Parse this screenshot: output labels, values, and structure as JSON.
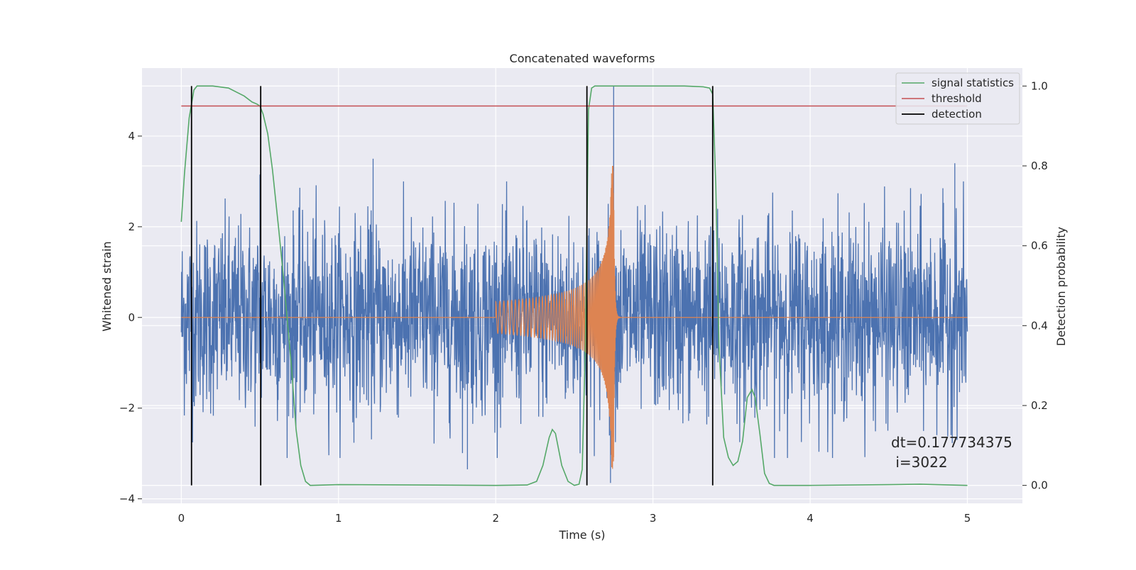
{
  "chart_data": {
    "type": "line",
    "title": "Concatenated waveforms",
    "xlabel": "Time (s)",
    "ylabel": "Whitened strain",
    "y2label": "Detection probability",
    "xlim": [
      -0.25,
      5.35
    ],
    "ylim": [
      -4.1,
      5.5
    ],
    "y2lim": [
      -0.045,
      1.045
    ],
    "xticks": [
      0,
      1,
      2,
      3,
      4,
      5
    ],
    "yticks": [
      -4,
      -2,
      0,
      2,
      4
    ],
    "y2ticks": [
      0.0,
      0.2,
      0.4,
      0.6,
      0.8,
      1.0
    ],
    "xtick_labels": [
      "0",
      "1",
      "2",
      "3",
      "4",
      "5"
    ],
    "ytick_labels": [
      "−4",
      "−2",
      "0",
      "2",
      "4"
    ],
    "y2tick_labels": [
      "0.0",
      "0.2",
      "0.4",
      "0.6",
      "0.8",
      "1.0"
    ],
    "grid": true,
    "legend_position": "top-right",
    "colors": {
      "strain": "#4c72b0",
      "injection": "#dd8452",
      "signal_statistics": "#55a868",
      "threshold": "#c44e52",
      "detection": "#000000",
      "axes_bg": "#eaeaf2",
      "grid": "#ffffff"
    },
    "series": [
      {
        "name": "signal statistics",
        "axis": "right",
        "x": [
          0.0,
          0.02,
          0.05,
          0.08,
          0.1,
          0.15,
          0.2,
          0.3,
          0.35,
          0.4,
          0.45,
          0.48,
          0.5,
          0.52,
          0.55,
          0.58,
          0.62,
          0.65,
          0.7,
          0.73,
          0.76,
          0.79,
          0.82,
          1.0,
          1.5,
          2.0,
          2.2,
          2.26,
          2.3,
          2.34,
          2.36,
          2.38,
          2.42,
          2.46,
          2.5,
          2.53,
          2.55,
          2.57,
          2.59,
          2.61,
          2.63,
          2.65,
          2.7,
          2.8,
          3.0,
          3.2,
          3.32,
          3.36,
          3.38,
          3.4,
          3.42,
          3.45,
          3.48,
          3.51,
          3.54,
          3.57,
          3.6,
          3.63,
          3.65,
          3.68,
          3.71,
          3.74,
          3.77,
          3.8,
          4.0,
          4.5,
          4.7,
          5.0
        ],
        "values": [
          0.66,
          0.78,
          0.92,
          0.99,
          1.0,
          1.0,
          1.0,
          0.995,
          0.985,
          0.975,
          0.96,
          0.955,
          0.95,
          0.93,
          0.88,
          0.79,
          0.64,
          0.52,
          0.3,
          0.14,
          0.05,
          0.01,
          0.0,
          0.002,
          0.001,
          0.0,
          0.001,
          0.01,
          0.05,
          0.12,
          0.14,
          0.13,
          0.05,
          0.01,
          0.0,
          0.003,
          0.04,
          0.35,
          0.94,
          0.995,
          1.0,
          1.0,
          1.0,
          1.0,
          1.0,
          1.0,
          0.998,
          0.995,
          0.98,
          0.75,
          0.35,
          0.12,
          0.07,
          0.05,
          0.06,
          0.11,
          0.22,
          0.24,
          0.22,
          0.13,
          0.03,
          0.005,
          0.0,
          0.0,
          0.0,
          0.002,
          0.003,
          0.0
        ]
      },
      {
        "name": "threshold",
        "axis": "right",
        "x": [
          0,
          5
        ],
        "values": [
          0.95,
          0.95
        ]
      },
      {
        "name": "detection",
        "axis": "right",
        "x": [
          0.065,
          0.505,
          2.58,
          3.38
        ],
        "values": [
          [
            0.0,
            1.0
          ],
          [
            0.0,
            1.0
          ],
          [
            0.0,
            1.0
          ],
          [
            0.0,
            1.0
          ]
        ]
      },
      {
        "name": "whitened strain",
        "axis": "left",
        "x_range": [
          0,
          5
        ],
        "description": "noise",
        "amplitude_std": 1.05,
        "spikes": [
          {
            "x": 2.75,
            "y": 5.1
          },
          {
            "x": 2.73,
            "y": -3.65
          },
          {
            "x": 1.22,
            "y": 3.5
          },
          {
            "x": 4.92,
            "y": 3.4
          },
          {
            "x": 0.5,
            "y": 3.15
          },
          {
            "x": 1.82,
            "y": -3.35
          }
        ]
      },
      {
        "name": "injected waveform",
        "axis": "left",
        "x_range": [
          2.0,
          2.76
        ],
        "description": "chirp",
        "start_amplitude": 0.35,
        "peak_amplitude": 3.35,
        "peak_time": 2.75,
        "ringdown_end": 3.0
      }
    ],
    "legend": [
      "signal statistics",
      "threshold",
      "detection"
    ],
    "annotation": {
      "line1": "dt=0.177734375",
      "line2": " i=3022"
    }
  }
}
